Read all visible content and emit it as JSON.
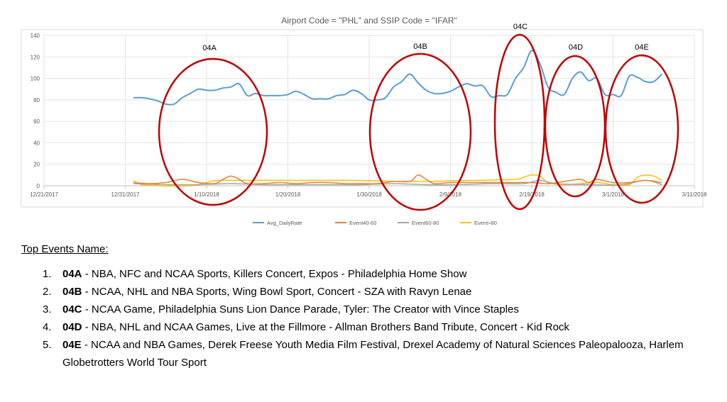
{
  "chart_data": {
    "type": "line",
    "title": "Airport Code = \"PHL\" and SSIP Code = \"IFAR\"",
    "ylim": [
      0,
      140
    ],
    "yticks": [
      0,
      20,
      40,
      60,
      80,
      100,
      120,
      140
    ],
    "xticks": [
      "12/21/2017",
      "12/31/2017",
      "1/10/2018",
      "1/20/2018",
      "1/30/2018",
      "2/9/2018",
      "2/19/2018",
      "3/1/2018",
      "3/11/2018"
    ],
    "xlim": [
      "2017-12-21",
      "2018-03-11"
    ],
    "grid": true,
    "legend_position": "bottom",
    "series": [
      {
        "name": "Avg_DailyRate",
        "color": "#5b9bd5",
        "points": [
          [
            "2018-01-01",
            82
          ],
          [
            "2018-01-02",
            82
          ],
          [
            "2018-01-03",
            81
          ],
          [
            "2018-01-04",
            79
          ],
          [
            "2018-01-05",
            76
          ],
          [
            "2018-01-06",
            76
          ],
          [
            "2018-01-07",
            82
          ],
          [
            "2018-01-08",
            86
          ],
          [
            "2018-01-09",
            90
          ],
          [
            "2018-01-10",
            89
          ],
          [
            "2018-01-11",
            89
          ],
          [
            "2018-01-12",
            91
          ],
          [
            "2018-01-13",
            92
          ],
          [
            "2018-01-14",
            95
          ],
          [
            "2018-01-15",
            84
          ],
          [
            "2018-01-16",
            86
          ],
          [
            "2018-01-17",
            84
          ],
          [
            "2018-01-18",
            84
          ],
          [
            "2018-01-19",
            84
          ],
          [
            "2018-01-20",
            85
          ],
          [
            "2018-01-21",
            88
          ],
          [
            "2018-01-22",
            85
          ],
          [
            "2018-01-23",
            81
          ],
          [
            "2018-01-24",
            81
          ],
          [
            "2018-01-25",
            81
          ],
          [
            "2018-01-26",
            84
          ],
          [
            "2018-01-27",
            85
          ],
          [
            "2018-01-28",
            89
          ],
          [
            "2018-01-29",
            86
          ],
          [
            "2018-01-30",
            80
          ],
          [
            "2018-01-31",
            80
          ],
          [
            "2018-02-01",
            82
          ],
          [
            "2018-02-02",
            92
          ],
          [
            "2018-02-03",
            97
          ],
          [
            "2018-02-04",
            104
          ],
          [
            "2018-02-05",
            96
          ],
          [
            "2018-02-06",
            89
          ],
          [
            "2018-02-07",
            86
          ],
          [
            "2018-02-08",
            86
          ],
          [
            "2018-02-09",
            88
          ],
          [
            "2018-02-10",
            92
          ],
          [
            "2018-02-11",
            95
          ],
          [
            "2018-02-12",
            93
          ],
          [
            "2018-02-13",
            93
          ],
          [
            "2018-02-14",
            83
          ],
          [
            "2018-02-15",
            84
          ],
          [
            "2018-02-16",
            85
          ],
          [
            "2018-02-17",
            100
          ],
          [
            "2018-02-18",
            110
          ],
          [
            "2018-02-19",
            126
          ],
          [
            "2018-02-20",
            114
          ],
          [
            "2018-02-21",
            92
          ],
          [
            "2018-02-22",
            87
          ],
          [
            "2018-02-23",
            85
          ],
          [
            "2018-02-24",
            100
          ],
          [
            "2018-02-25",
            106
          ],
          [
            "2018-02-26",
            98
          ],
          [
            "2018-02-27",
            100
          ],
          [
            "2018-02-28",
            85
          ],
          [
            "2018-03-01",
            85
          ],
          [
            "2018-03-02",
            84
          ],
          [
            "2018-03-03",
            102
          ],
          [
            "2018-03-04",
            101
          ],
          [
            "2018-03-05",
            97
          ],
          [
            "2018-03-06",
            97
          ],
          [
            "2018-03-07",
            104
          ]
        ]
      },
      {
        "name": "Event40-60",
        "color": "#ed7d31",
        "points": [
          [
            "2018-01-01",
            3
          ],
          [
            "2018-01-03",
            2
          ],
          [
            "2018-01-05",
            3
          ],
          [
            "2018-01-07",
            6
          ],
          [
            "2018-01-09",
            3
          ],
          [
            "2018-01-11",
            2
          ],
          [
            "2018-01-12",
            6
          ],
          [
            "2018-01-13",
            9
          ],
          [
            "2018-01-14",
            6
          ],
          [
            "2018-01-15",
            2
          ],
          [
            "2018-01-17",
            2
          ],
          [
            "2018-01-19",
            3
          ],
          [
            "2018-01-21",
            2
          ],
          [
            "2018-01-23",
            3
          ],
          [
            "2018-01-25",
            3
          ],
          [
            "2018-01-27",
            2
          ],
          [
            "2018-01-29",
            2
          ],
          [
            "2018-01-31",
            2
          ],
          [
            "2018-02-02",
            4
          ],
          [
            "2018-02-04",
            4
          ],
          [
            "2018-02-05",
            10
          ],
          [
            "2018-02-06",
            6
          ],
          [
            "2018-02-07",
            2
          ],
          [
            "2018-02-09",
            3
          ],
          [
            "2018-02-11",
            3
          ],
          [
            "2018-02-13",
            3
          ],
          [
            "2018-02-15",
            3
          ],
          [
            "2018-02-17",
            3
          ],
          [
            "2018-02-19",
            3
          ],
          [
            "2018-02-21",
            2
          ],
          [
            "2018-02-23",
            4
          ],
          [
            "2018-02-25",
            6
          ],
          [
            "2018-02-26",
            3
          ],
          [
            "2018-02-27",
            6
          ],
          [
            "2018-03-01",
            3
          ],
          [
            "2018-03-03",
            3
          ],
          [
            "2018-03-05",
            5
          ],
          [
            "2018-03-07",
            3
          ]
        ]
      },
      {
        "name": "Event60-80",
        "color": "#a5a5a5",
        "points": [
          [
            "2018-01-01",
            2
          ],
          [
            "2018-01-05",
            1
          ],
          [
            "2018-01-09",
            1
          ],
          [
            "2018-01-13",
            2
          ],
          [
            "2018-01-17",
            1
          ],
          [
            "2018-01-21",
            1
          ],
          [
            "2018-01-25",
            1
          ],
          [
            "2018-01-29",
            1
          ],
          [
            "2018-02-02",
            2
          ],
          [
            "2018-02-06",
            1
          ],
          [
            "2018-02-10",
            1
          ],
          [
            "2018-02-14",
            2
          ],
          [
            "2018-02-18",
            2
          ],
          [
            "2018-02-20",
            5
          ],
          [
            "2018-02-22",
            2
          ],
          [
            "2018-02-26",
            1
          ],
          [
            "2018-03-02",
            1
          ],
          [
            "2018-03-05",
            5
          ],
          [
            "2018-03-07",
            1
          ]
        ]
      },
      {
        "name": "Event>80",
        "color": "#ffc000",
        "points": [
          [
            "2018-01-01",
            5
          ],
          [
            "2018-01-02",
            1
          ],
          [
            "2018-01-04",
            0
          ],
          [
            "2018-01-08",
            0
          ],
          [
            "2018-01-10",
            3
          ],
          [
            "2018-01-12",
            5
          ],
          [
            "2018-01-20",
            5
          ],
          [
            "2018-01-28",
            5
          ],
          [
            "2018-02-04",
            4
          ],
          [
            "2018-02-12",
            5
          ],
          [
            "2018-02-17",
            6
          ],
          [
            "2018-02-18",
            8
          ],
          [
            "2018-02-19",
            10
          ],
          [
            "2018-02-20",
            9
          ],
          [
            "2018-02-21",
            3
          ],
          [
            "2018-02-23",
            1
          ],
          [
            "2018-02-27",
            3
          ],
          [
            "2018-03-01",
            1
          ],
          [
            "2018-03-03",
            1
          ],
          [
            "2018-03-04",
            8
          ],
          [
            "2018-03-05",
            10
          ],
          [
            "2018-03-06",
            9
          ],
          [
            "2018-03-07",
            5
          ]
        ]
      }
    ],
    "annotations": [
      {
        "label": "04A",
        "color": "#c00000"
      },
      {
        "label": "04B",
        "color": "#c00000"
      },
      {
        "label": "04C",
        "color": "#c00000"
      },
      {
        "label": "04D",
        "color": "#c00000"
      },
      {
        "label": "04E",
        "color": "#c00000"
      }
    ]
  },
  "events": {
    "heading": "Top Events Name:",
    "items": [
      {
        "number": "1.",
        "code": "04A",
        "text": " - NBA, NFC and NCAA Sports, Killers Concert, Expos - Philadelphia Home Show"
      },
      {
        "number": "2.",
        "code": "04B",
        "text": " - NCAA, NHL and NBA Sports, Wing Bowl Sport, Concert - SZA with Ravyn Lenae"
      },
      {
        "number": "3.",
        "code": "04C",
        "text": " - NCAA Game, Philadelphia Suns Lion Dance Parade, Tyler: The Creator with Vince Staples"
      },
      {
        "number": "4.",
        "code": "04D",
        "text": " - NBA, NHL and NCAA Games, Live at the Fillmore - Allman Brothers Band Tribute, Concert - Kid Rock"
      },
      {
        "number": "5.",
        "code": "04E",
        "text": " - NCAA and NBA Games, Derek Freese Youth Media Film Festival, Drexel Academy of Natural Sciences Paleopalooza, Harlem Globetrotters World Tour Sport"
      }
    ]
  }
}
